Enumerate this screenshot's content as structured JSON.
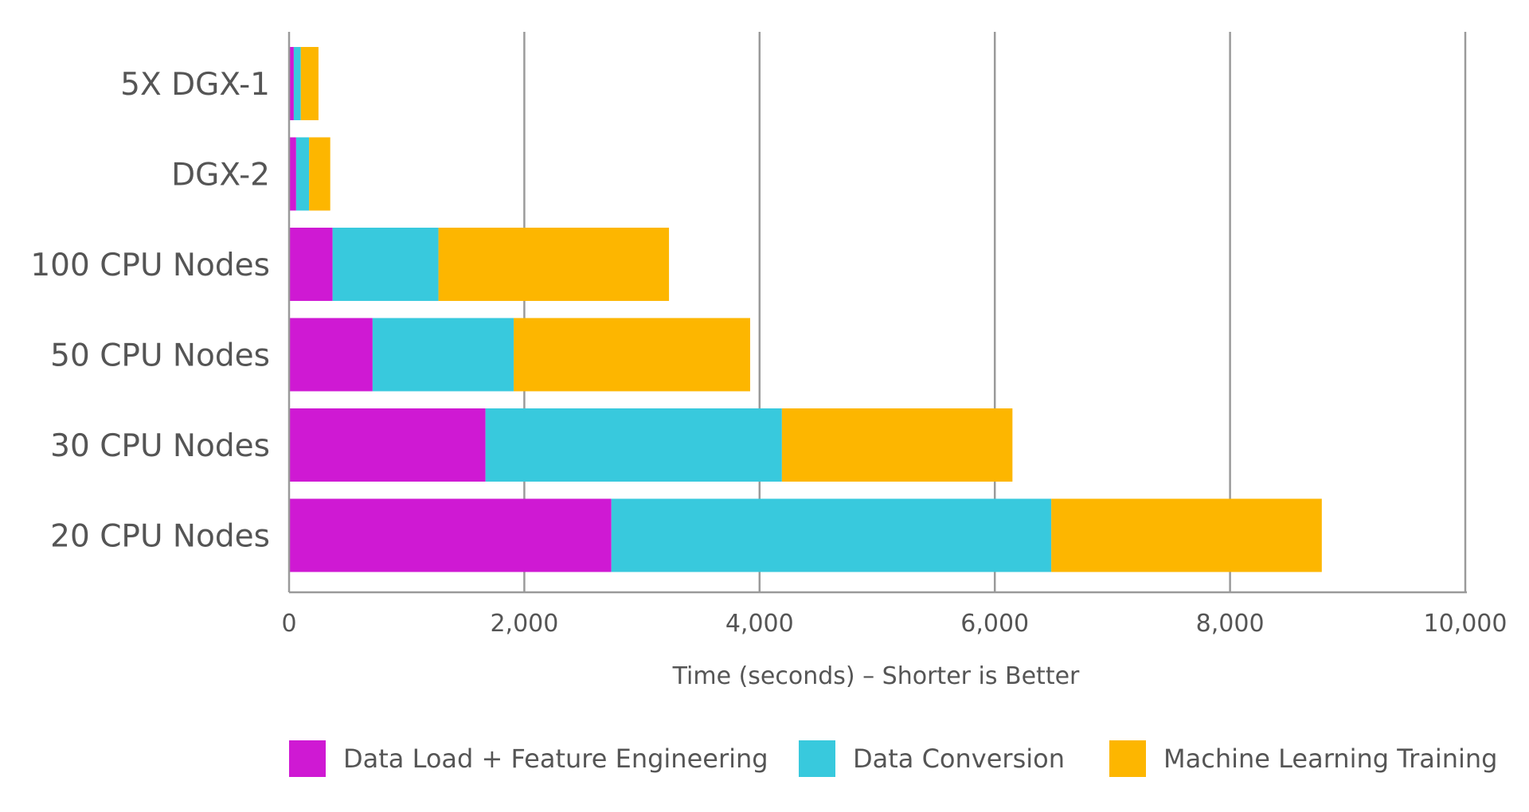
{
  "chart_data": {
    "type": "bar",
    "orientation": "horizontal",
    "stacked": true,
    "categories": [
      "5X DGX-1",
      "DGX-2",
      "100 CPU Nodes",
      "50 CPU Nodes",
      "30 CPU Nodes",
      "20 CPU Nodes"
    ],
    "series": [
      {
        "name": "Data Load + Feature Engineering",
        "color": "#CF19D3",
        "values": [
          40,
          60,
          370,
          710,
          1670,
          2740
        ]
      },
      {
        "name": "Data Conversion",
        "color": "#38C9DD",
        "values": [
          60,
          110,
          900,
          1200,
          2520,
          3740
        ]
      },
      {
        "name": "Machine Learning Training",
        "color": "#FDB600",
        "values": [
          150,
          180,
          1960,
          2010,
          1960,
          2300
        ]
      }
    ],
    "title": "",
    "xlabel": "Time (seconds) – Shorter is Better",
    "ylabel": "",
    "xlim": [
      0,
      10000
    ],
    "xticks": [
      0,
      2000,
      4000,
      6000,
      8000,
      10000
    ],
    "xtick_labels": [
      "0",
      "2,000",
      "4,000",
      "6,000",
      "8,000",
      "10,000"
    ],
    "grid": "vertical",
    "legend_position": "bottom"
  }
}
